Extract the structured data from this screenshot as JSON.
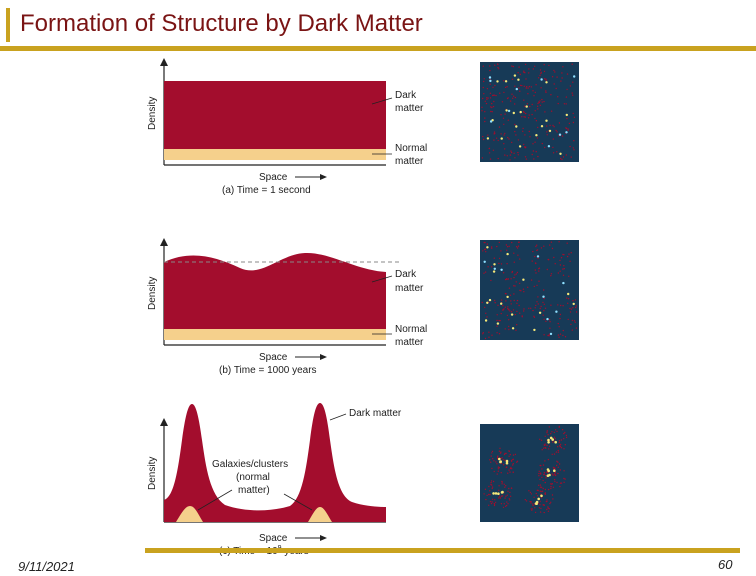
{
  "slide": {
    "title": "Formation of Structure by Dark Matter",
    "date": "9/11/2021",
    "page_number": "60"
  },
  "colors": {
    "accent_gold": "#c9a21f",
    "title_red": "#7a1414",
    "dark_matter": "#a30d2d",
    "normal_matter": "#f5d08c",
    "sim_background": "#173a57"
  },
  "panels": [
    {
      "y_axis": "Density",
      "x_axis": "Space",
      "caption": "(a) Time = 1 second",
      "dark_label_lines": [
        "Dark",
        "matter"
      ],
      "normal_label_lines": [
        "Normal",
        "matter"
      ]
    },
    {
      "y_axis": "Density",
      "x_axis": "Space",
      "caption": "(b) Time = 1000 years",
      "dark_label_lines": [
        "Dark",
        "matter"
      ],
      "normal_label_lines": [
        "Normal",
        "matter"
      ]
    },
    {
      "y_axis": "Density",
      "x_axis": "Space",
      "caption_prefix": "(c) Time = 10",
      "caption_exp": "9",
      "caption_suffix": " years",
      "dark_label": "Dark matter",
      "galaxy_label_lines": [
        "Galaxies/clusters",
        "(normal",
        "matter)"
      ]
    }
  ]
}
